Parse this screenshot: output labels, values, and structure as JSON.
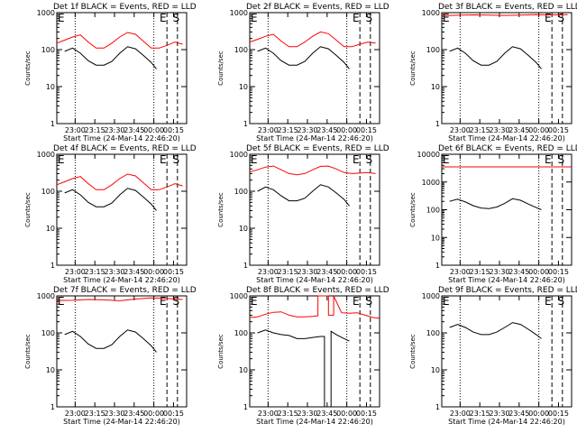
{
  "colors": {
    "events": "#000000",
    "lld": "#ff0000",
    "background": "#ffffff"
  },
  "chart_data": {
    "type": "line",
    "log_y": true,
    "shared": {
      "ylabel": "Counts/sec",
      "xlabel": "Start Time (24-Mar-14 22:46:20)",
      "x_ticks": [
        "23:00",
        "23:15",
        "23:30",
        "23:45",
        "00:00",
        "00:15"
      ],
      "x_tick_minutes": [
        14,
        29,
        44,
        59,
        74,
        89
      ],
      "xlim_minutes": [
        0,
        99
      ],
      "ylim": [
        1,
        1000
      ],
      "y_ticks": [
        "1",
        "10",
        "100",
        "1000"
      ],
      "y_ticks_wide": [
        "1",
        "10",
        "100",
        "1000",
        "10000"
      ],
      "dotted_lines_minutes": [
        14,
        74
      ],
      "dashed_lines_minutes": [
        84,
        92
      ],
      "markers": [
        "E",
        "S"
      ],
      "marker_minutes": [
        81,
        91
      ]
    },
    "panels": [
      {
        "title": "Det 1f BLACK = Events, RED = LLD",
        "series": [
          {
            "color": "events",
            "x": [
              6,
              12,
              18,
              24,
              30,
              36,
              42,
              48,
              54,
              60,
              66,
              72,
              76
            ],
            "y": [
              90,
              110,
              80,
              50,
              38,
              38,
              48,
              80,
              120,
              105,
              70,
              45,
              30
            ]
          },
          {
            "color": "lld",
            "x": [
              0,
              6,
              12,
              18,
              24,
              30,
              36,
              42,
              48,
              54,
              60,
              66,
              72,
              78,
              84,
              90,
              96
            ],
            "y": [
              150,
              180,
              220,
              250,
              160,
              110,
              110,
              150,
              220,
              290,
              260,
              170,
              110,
              110,
              130,
              160,
              140
            ]
          }
        ]
      },
      {
        "title": "Det 2f BLACK = Events, RED = LLD",
        "series": [
          {
            "color": "events",
            "x": [
              6,
              12,
              18,
              24,
              30,
              36,
              42,
              48,
              54,
              60,
              66,
              72,
              76
            ],
            "y": [
              90,
              110,
              80,
              50,
              38,
              38,
              48,
              80,
              120,
              105,
              70,
              45,
              30
            ]
          },
          {
            "color": "lld",
            "x": [
              0,
              6,
              12,
              18,
              24,
              30,
              36,
              42,
              48,
              54,
              60,
              66,
              72,
              78,
              84,
              90,
              96
            ],
            "y": [
              160,
              190,
              230,
              260,
              170,
              120,
              120,
              160,
              230,
              300,
              270,
              180,
              120,
              120,
              140,
              160,
              150
            ]
          }
        ]
      },
      {
        "title": "Det 3f BLACK = Events, RED = LLD",
        "series": [
          {
            "color": "events",
            "x": [
              6,
              12,
              18,
              24,
              30,
              36,
              42,
              48,
              54,
              60,
              66,
              72,
              76
            ],
            "y": [
              90,
              110,
              80,
              50,
              38,
              38,
              48,
              80,
              120,
              105,
              70,
              45,
              30
            ]
          },
          {
            "color": "lld",
            "x": [
              0,
              12,
              24,
              36,
              48,
              60,
              72,
              84,
              96
            ],
            "y": [
              820,
              850,
              870,
              860,
              840,
              860,
              880,
              870,
              880
            ]
          }
        ]
      },
      {
        "title": "Det 4f BLACK = Events, RED = LLD",
        "series": [
          {
            "color": "events",
            "x": [
              6,
              12,
              18,
              24,
              30,
              36,
              42,
              48,
              54,
              60,
              66,
              72,
              76
            ],
            "y": [
              90,
              110,
              80,
              50,
              38,
              38,
              48,
              80,
              120,
              105,
              70,
              45,
              30
            ]
          },
          {
            "color": "lld",
            "x": [
              0,
              6,
              12,
              18,
              24,
              30,
              36,
              42,
              48,
              54,
              60,
              66,
              72,
              78,
              84,
              90,
              96
            ],
            "y": [
              150,
              180,
              220,
              250,
              160,
              110,
              110,
              150,
              220,
              290,
              260,
              170,
              110,
              110,
              130,
              160,
              140
            ]
          }
        ]
      },
      {
        "title": "Det 5f BLACK = Events, RED = LLD",
        "series": [
          {
            "color": "events",
            "x": [
              6,
              12,
              18,
              24,
              30,
              36,
              42,
              48,
              54,
              60,
              66,
              72,
              76
            ],
            "y": [
              100,
              130,
              110,
              75,
              55,
              55,
              65,
              100,
              150,
              130,
              90,
              60,
              40
            ]
          },
          {
            "color": "lld",
            "x": [
              0,
              6,
              12,
              18,
              24,
              30,
              36,
              42,
              48,
              54,
              60,
              66,
              72,
              78,
              84,
              90,
              96
            ],
            "y": [
              330,
              380,
              450,
              480,
              380,
              300,
              280,
              300,
              380,
              470,
              480,
              400,
              320,
              300,
              310,
              320,
              300
            ]
          }
        ]
      },
      {
        "title": "Det 6f BLACK = Events, RED = LLD",
        "wide_y": true,
        "series": [
          {
            "color": "events",
            "x": [
              6,
              12,
              18,
              24,
              30,
              36,
              42,
              48,
              54,
              60,
              66,
              72,
              76
            ],
            "y": [
              200,
              240,
              190,
              140,
              115,
              110,
              125,
              170,
              250,
              220,
              160,
              120,
              100
            ]
          },
          {
            "color": "lld",
            "x": [
              0,
              99
            ],
            "y": [
              3500,
              3500
            ]
          }
        ]
      },
      {
        "title": "Det 7f BLACK = Events, RED = LLD",
        "series": [
          {
            "color": "events",
            "x": [
              6,
              12,
              18,
              24,
              30,
              36,
              42,
              48,
              54,
              60,
              66,
              72,
              76
            ],
            "y": [
              90,
              110,
              80,
              50,
              38,
              38,
              48,
              80,
              120,
              105,
              70,
              45,
              30
            ]
          },
          {
            "color": "lld",
            "x": [
              0,
              12,
              24,
              36,
              48,
              60,
              72,
              84,
              96
            ],
            "y": [
              750,
              760,
              800,
              780,
              740,
              820,
              880,
              850,
              800
            ]
          }
        ]
      },
      {
        "title": "Det 8f BLACK = Events, RED = LLD",
        "series": [
          {
            "color": "events",
            "x": [
              6,
              12,
              18,
              24,
              30,
              36,
              42,
              48,
              54,
              57,
              57.01,
              62,
              62.01,
              66,
              72,
              76
            ],
            "y": [
              100,
              120,
              100,
              90,
              85,
              70,
              70,
              75,
              80,
              80,
              1,
              1,
              110,
              90,
              70,
              60
            ]
          },
          {
            "color": "lld",
            "x": [
              0,
              6,
              12,
              18,
              24,
              30,
              36,
              42,
              48,
              52,
              52.01,
              60,
              60.01,
              64,
              64.01,
              70,
              76,
              82,
              88,
              94,
              99
            ],
            "y": [
              260,
              270,
              320,
              360,
              370,
              300,
              270,
              270,
              280,
              290,
              1000,
              1000,
              300,
              300,
              1000,
              350,
              340,
              350,
              300,
              260,
              250
            ]
          }
        ]
      },
      {
        "title": "Det 9f BLACK = Events, RED = LLD",
        "series": [
          {
            "color": "events",
            "x": [
              6,
              12,
              18,
              24,
              30,
              36,
              42,
              48,
              54,
              60,
              66,
              72,
              76
            ],
            "y": [
              140,
              170,
              140,
              105,
              90,
              90,
              105,
              140,
              190,
              170,
              125,
              90,
              70
            ]
          }
        ]
      }
    ]
  }
}
